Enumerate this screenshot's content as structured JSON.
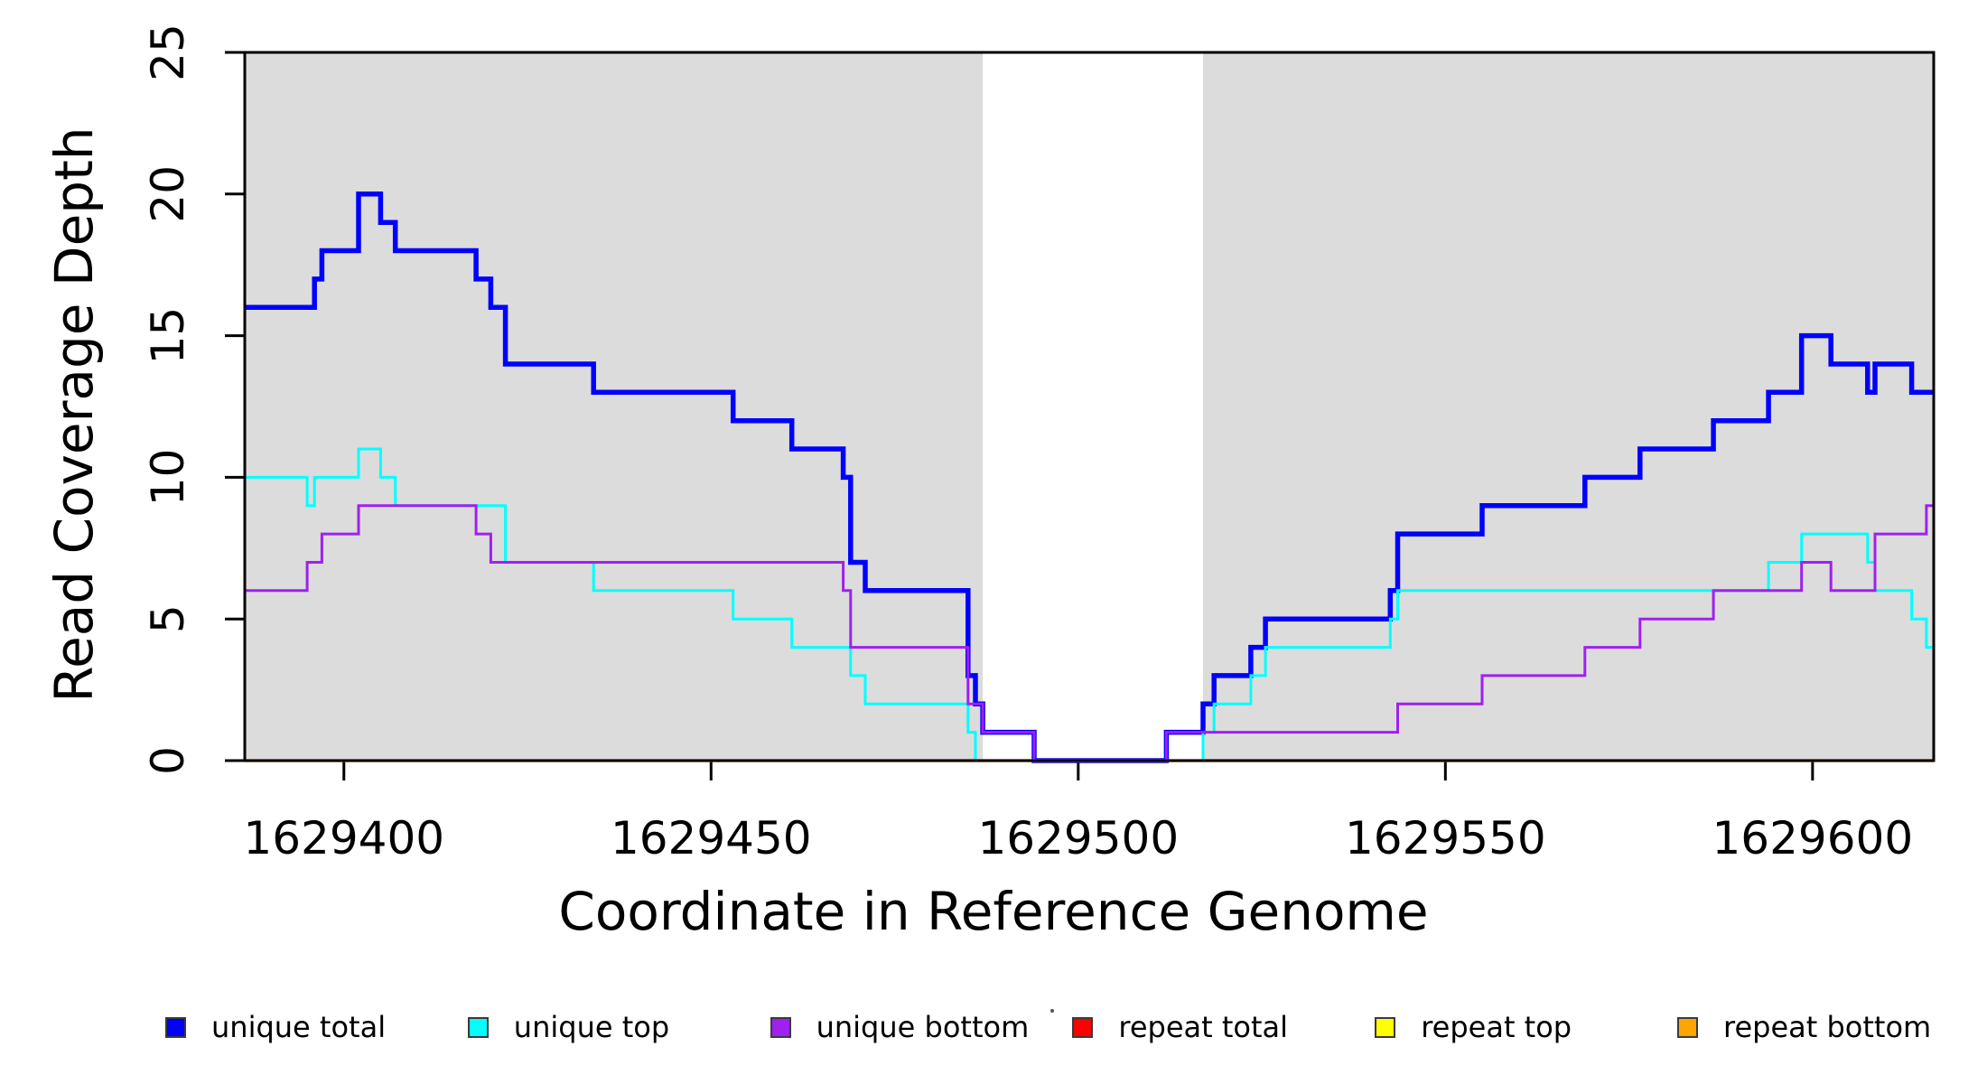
{
  "figure": {
    "x_axis_title": "Coordinate in Reference Genome",
    "y_axis_title": "Read Coverage Depth"
  },
  "chart_data": {
    "type": "line",
    "subtype": "step-coverage-plot",
    "title": "",
    "xlabel": "Coordinate in Reference Genome",
    "ylabel": "Read Coverage Depth",
    "xlim": [
      1629386.5,
      1629616.5
    ],
    "ylim": [
      0,
      25
    ],
    "grid": false,
    "legend_position": "bottom",
    "background_color": "#ffffff",
    "shaded_region_color": "#DCDCDC",
    "shaded_regions": [
      {
        "name": "unique-region-left",
        "x0": 1629386.5,
        "x1": 1629487.0
      },
      {
        "name": "unique-region-right",
        "x0": 1629517.0,
        "x1": 1629616.5
      }
    ],
    "x_ticks": [
      {
        "value": 1629400,
        "label": "1629400"
      },
      {
        "value": 1629450,
        "label": "1629450"
      },
      {
        "value": 1629500,
        "label": "1629500"
      },
      {
        "value": 1629550,
        "label": "1629550"
      },
      {
        "value": 1629600,
        "label": "1629600"
      }
    ],
    "y_ticks": [
      {
        "value": 0,
        "label": "0"
      },
      {
        "value": 5,
        "label": "5"
      },
      {
        "value": 10,
        "label": "10"
      },
      {
        "value": 15,
        "label": "15"
      },
      {
        "value": 20,
        "label": "20"
      },
      {
        "value": 25,
        "label": "25"
      }
    ],
    "series_note": "steps = [coordinate, depth] pairs; each depth holds from its coordinate until the next pair's coordinate (R type='s' step plot); final value extends to xlim max",
    "series": [
      {
        "name": "unique total",
        "color": "#0000FF",
        "stroke_width": 5.5,
        "steps": [
          [
            1629386.5,
            16
          ],
          [
            1629396,
            17
          ],
          [
            1629397,
            18
          ],
          [
            1629402,
            20
          ],
          [
            1629405,
            19
          ],
          [
            1629407,
            18
          ],
          [
            1629418,
            17
          ],
          [
            1629420,
            16
          ],
          [
            1629422,
            14
          ],
          [
            1629434,
            13
          ],
          [
            1629453,
            12
          ],
          [
            1629461,
            11
          ],
          [
            1629468,
            10
          ],
          [
            1629469,
            7
          ],
          [
            1629471,
            6
          ],
          [
            1629485,
            3
          ],
          [
            1629486,
            2
          ],
          [
            1629487,
            1
          ],
          [
            1629494,
            0
          ],
          [
            1629512,
            1
          ],
          [
            1629517,
            2
          ],
          [
            1629518.5,
            3
          ],
          [
            1629523.5,
            4
          ],
          [
            1629525.5,
            5
          ],
          [
            1629542.5,
            6
          ],
          [
            1629543.5,
            8
          ],
          [
            1629555,
            9
          ],
          [
            1629569,
            10
          ],
          [
            1629576.5,
            11
          ],
          [
            1629586.5,
            12
          ],
          [
            1629594,
            13
          ],
          [
            1629598.5,
            15
          ],
          [
            1629602.5,
            14
          ],
          [
            1629607.5,
            13
          ],
          [
            1629608.5,
            14
          ],
          [
            1629613.5,
            13
          ]
        ]
      },
      {
        "name": "unique top",
        "color": "#00FFFF",
        "stroke_width": 3,
        "steps": [
          [
            1629386.5,
            10
          ],
          [
            1629395,
            9
          ],
          [
            1629396,
            10
          ],
          [
            1629402,
            11
          ],
          [
            1629405,
            10
          ],
          [
            1629407,
            9
          ],
          [
            1629422,
            7
          ],
          [
            1629434,
            6
          ],
          [
            1629453,
            5
          ],
          [
            1629461,
            4
          ],
          [
            1629469,
            3
          ],
          [
            1629471,
            2
          ],
          [
            1629485,
            1
          ],
          [
            1629486,
            0
          ],
          [
            1629517,
            1
          ],
          [
            1629518.5,
            2
          ],
          [
            1629523.5,
            3
          ],
          [
            1629525.5,
            4
          ],
          [
            1629542.5,
            5
          ],
          [
            1629543.5,
            6
          ],
          [
            1629594,
            7
          ],
          [
            1629598.5,
            8
          ],
          [
            1629607.5,
            7
          ],
          [
            1629608.5,
            6
          ],
          [
            1629613.5,
            5
          ],
          [
            1629615.5,
            4
          ]
        ]
      },
      {
        "name": "unique bottom",
        "color": "#A020F0",
        "stroke_width": 3,
        "steps": [
          [
            1629386.5,
            6
          ],
          [
            1629395,
            7
          ],
          [
            1629397,
            8
          ],
          [
            1629402,
            9
          ],
          [
            1629418,
            8
          ],
          [
            1629420,
            7
          ],
          [
            1629468,
            6
          ],
          [
            1629469,
            4
          ],
          [
            1629485,
            2
          ],
          [
            1629487,
            1
          ],
          [
            1629494,
            0
          ],
          [
            1629512,
            1
          ],
          [
            1629543.5,
            2
          ],
          [
            1629555,
            3
          ],
          [
            1629569,
            4
          ],
          [
            1629576.5,
            5
          ],
          [
            1629586.5,
            6
          ],
          [
            1629598.5,
            7
          ],
          [
            1629602.5,
            6
          ],
          [
            1629608.5,
            8
          ],
          [
            1629615.5,
            9
          ]
        ]
      },
      {
        "name": "repeat total",
        "color": "#FF0000",
        "stroke_width": 3,
        "steps": [
          [
            1629386.5,
            0
          ]
        ]
      },
      {
        "name": "repeat top",
        "color": "#FFFF00",
        "stroke_width": 3,
        "steps": [
          [
            1629386.5,
            0
          ]
        ]
      },
      {
        "name": "repeat bottom",
        "color": "#FFA500",
        "stroke_width": 3.5,
        "steps": [
          [
            1629386.5,
            0
          ]
        ]
      }
    ],
    "legend": [
      {
        "label": "unique total",
        "color": "#0000FF"
      },
      {
        "label": "unique top",
        "color": "#00FFFF"
      },
      {
        "label": "unique bottom",
        "color": "#A020F0"
      },
      {
        "label": "repeat total",
        "color": "#FF0000"
      },
      {
        "label": "repeat top",
        "color": "#FFFF00"
      },
      {
        "label": "repeat bottom",
        "color": "#FFA500"
      }
    ]
  }
}
